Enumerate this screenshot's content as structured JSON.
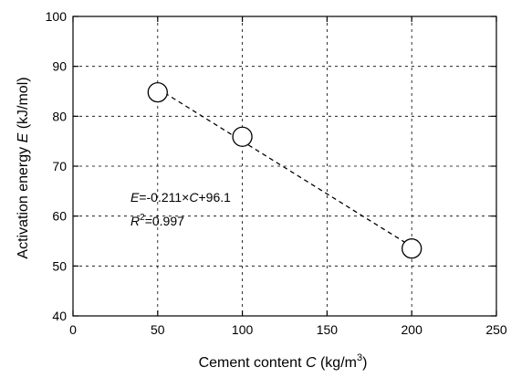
{
  "chart_data": {
    "type": "scatter",
    "xlabel": {
      "prefix": "Cement content ",
      "var": "C",
      "unit": " (kg/m",
      "sup": "3",
      "close": ")"
    },
    "ylabel": {
      "prefix": "Activation energy ",
      "var": "E",
      "unit": " (kJ/mol)"
    },
    "xlim": [
      0,
      250
    ],
    "ylim": [
      40,
      100
    ],
    "xticks": [
      0,
      50,
      100,
      150,
      200,
      250
    ],
    "yticks": [
      40,
      50,
      60,
      70,
      80,
      90,
      100
    ],
    "grid": "dashed",
    "series": [
      {
        "x": [
          50,
          100,
          200
        ],
        "y": [
          84.8,
          75.9,
          53.5
        ],
        "marker": "open-circle"
      }
    ],
    "fit": {
      "slope": -0.211,
      "intercept": 96.1,
      "x_range": [
        50,
        200
      ],
      "style": "dashed"
    },
    "annotation": {
      "eq_var": "E",
      "eq_mid": "=-0.211×",
      "eq_var2": "C",
      "eq_end": "+96.1",
      "r2_var": "R",
      "r2_sup": "2",
      "r2_val": "=0.997"
    }
  }
}
